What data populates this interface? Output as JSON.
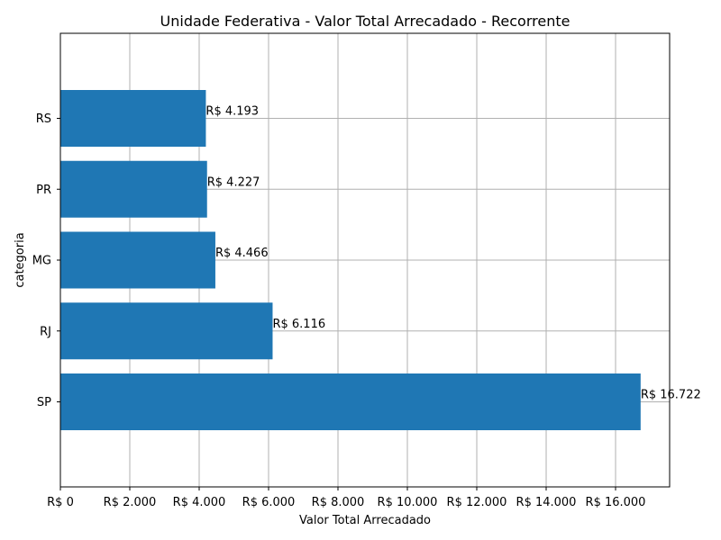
{
  "chart_data": {
    "type": "bar",
    "orientation": "horizontal",
    "title": "Unidade Federativa - Valor Total Arrecadado - Recorrente",
    "xlabel": "Valor Total Arrecadado",
    "ylabel": "categoria",
    "categories": [
      "SP",
      "RJ",
      "MG",
      "PR",
      "RS"
    ],
    "values": [
      16722,
      6116,
      4466,
      4227,
      4193
    ],
    "value_labels": [
      "R$ 16.722",
      "R$ 6.116",
      "R$ 4.466",
      "R$ 4.227",
      "R$ 4.193"
    ],
    "xlim": [
      0,
      17558
    ],
    "xticks": [
      0,
      2000,
      4000,
      6000,
      8000,
      10000,
      12000,
      14000,
      16000
    ],
    "xtick_labels": [
      "R$ 0",
      "R$ 2.000",
      "R$ 4.000",
      "R$ 6.000",
      "R$ 8.000",
      "R$ 10.000",
      "R$ 12.000",
      "R$ 14.000",
      "R$ 16.000"
    ],
    "grid": true,
    "bar_color": "#1f77b4"
  }
}
